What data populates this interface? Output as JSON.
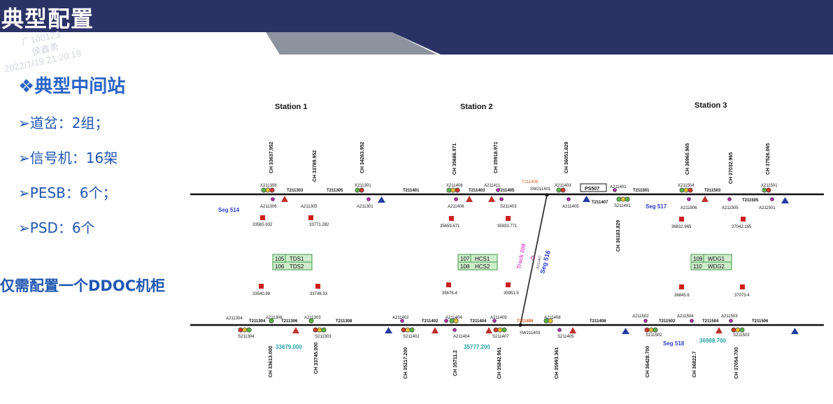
{
  "header": {
    "title": "典型配置",
    "watermark_lines": [
      "广100123",
      "侯鑫勇",
      "2022/1/19 21:20:19"
    ]
  },
  "content": {
    "heading": "❖典型中间站",
    "bullets": [
      "➢道岔：2组；",
      "➢信号机：16架",
      "➢PESB：6个；",
      "➢PSD：6个"
    ],
    "bottom_note": "仅需配置一个DDOC机柜"
  },
  "diagram": {
    "stations": [
      "Station 1",
      "Station 2",
      "Station 3"
    ],
    "upper_labels": [
      "X211306",
      "T211303",
      "T211305",
      "X211301",
      "T211401",
      "X211408",
      "T211403",
      "A211411",
      "T211405",
      "SW211401",
      "X211403",
      "PS507",
      "A211401",
      "T211501",
      "X211504",
      "T211503",
      "X211501"
    ],
    "upper_below": [
      "A211306",
      "A211305",
      "A211301",
      "A211406",
      "S211403",
      "A211405",
      "T211407",
      "S211401",
      "A211506",
      "A211505",
      "A211501",
      "T211505"
    ],
    "lower_labels": [
      "A211304",
      "T211304",
      "A211306",
      "T211306",
      "A211303",
      "T211308",
      "A211402",
      "T211402",
      "A211404",
      "T211404",
      "A211409",
      "T211406",
      "A211408",
      "T211408",
      "A211502",
      "T211502",
      "A211504",
      "T211504",
      "A211503",
      "T211506"
    ],
    "lower_below": [
      "S211304",
      "S211303",
      "S211402",
      "A211404",
      "S211407",
      "SW211403",
      "S211405",
      "S211502",
      "S211503"
    ],
    "ch_top": [
      "CH 33637.952",
      "CH 33789.952",
      "CH 34263.952",
      "CH 35686.971",
      "CH 35918.971",
      "CH 36051.829",
      "CH 36960.965",
      "CH 37032.965",
      "CH 37526.065"
    ],
    "ch_mid": [
      "CH 36183.829"
    ],
    "ch_bottom": [
      "CH 33613.000",
      "CH 33745.000",
      "CH 35217.200",
      "CH 35711.2",
      "CH 35842.961",
      "CH 35993.361",
      "CH 36428.700",
      "CH 36822.7",
      "CH 37054.700"
    ],
    "segments": [
      "Seg 514",
      "Seg 517",
      "Seg 518",
      "Seg 516",
      "Track 208"
    ],
    "segment_values": [
      "33679.000",
      "35777.200",
      "36988.700"
    ],
    "marker_values_upper": [
      "33565.932",
      "33771.282",
      "35659.671",
      "35933.771",
      "36832.965",
      "37042.165"
    ],
    "marker_values_lower": [
      "33540.98",
      "33746.33",
      "35676.4",
      "35951.5",
      "36845.6",
      "37073.4"
    ],
    "boxes": [
      {
        "a": "105",
        "b": "TDS1"
      },
      {
        "a": "106",
        "b": "TDS2"
      },
      {
        "a": "107",
        "b": "HCS1"
      },
      {
        "a": "108",
        "b": "HCS2"
      },
      {
        "a": "109",
        "b": "WDG1"
      },
      {
        "a": "110",
        "b": "WDG2"
      }
    ],
    "diag_labels": [
      "T211409",
      "A211407",
      "T211406"
    ],
    "colors": {
      "header_navy": "#2b3266",
      "header_grey": "#8c929e",
      "line": "#111111",
      "seg": "#2b3bd0",
      "track": "#e64fd2",
      "box_fill": "#cfeccd",
      "box_stroke": "#3f9a46",
      "marker": "#cc1f1f",
      "tri_red": "#c0302a",
      "tri_blue": "#233a9e",
      "orange": "#d9571c",
      "teal": "#22a3a3"
    }
  }
}
